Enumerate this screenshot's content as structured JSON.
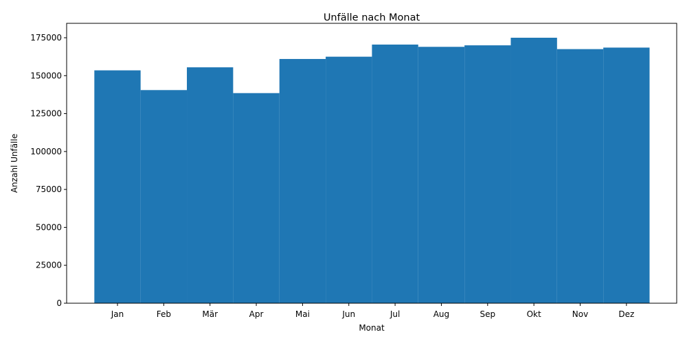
{
  "chart_data": {
    "type": "bar",
    "title": "Unfälle nach Monat",
    "xlabel": "Monat",
    "ylabel": "Anzahl Unfälle",
    "categories": [
      "Jan",
      "Feb",
      "Mär",
      "Apr",
      "Mai",
      "Jun",
      "Jul",
      "Aug",
      "Sep",
      "Okt",
      "Nov",
      "Dez"
    ],
    "values": [
      153500,
      140500,
      155500,
      138500,
      161000,
      162500,
      170500,
      169000,
      170000,
      175000,
      167500,
      168500
    ],
    "ylim": [
      0,
      184500
    ],
    "yticks": [
      0,
      25000,
      50000,
      75000,
      100000,
      125000,
      150000,
      175000
    ],
    "grid": false,
    "bar_color": "#1f77b4"
  }
}
